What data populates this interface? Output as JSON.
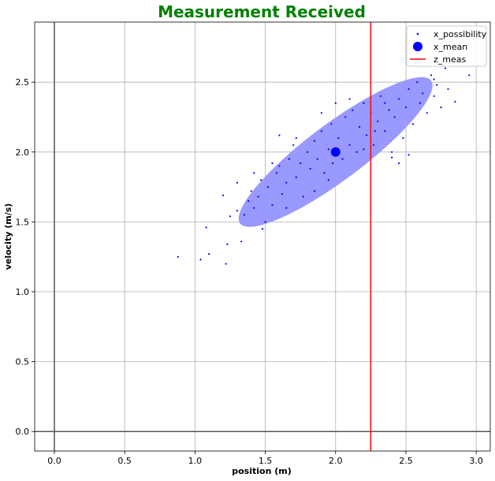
{
  "chart_data": {
    "type": "scatter",
    "title": "Measurement Received",
    "title_color": "#008000",
    "xlabel": "position (m)",
    "ylabel": "velocity (m/s)",
    "xlim": [
      -0.14,
      3.1
    ],
    "ylim": [
      -0.14,
      2.93
    ],
    "xticks": [
      0.0,
      0.5,
      1.0,
      1.5,
      2.0,
      2.5,
      3.0
    ],
    "xtick_labels": [
      "0.0",
      "0.5",
      "1.0",
      "1.5",
      "2.0",
      "2.5",
      "3.0"
    ],
    "yticks": [
      0.0,
      0.5,
      1.0,
      1.5,
      2.0,
      2.5
    ],
    "ytick_labels": [
      "0.0",
      "0.5",
      "1.0",
      "1.5",
      "2.0",
      "2.5"
    ],
    "grid": true,
    "zero_lines": true,
    "legend_position": "top-right",
    "legend": [
      {
        "label": "x_possibility",
        "marker": "dot-small",
        "color": "#0000ff"
      },
      {
        "label": "x_mean",
        "marker": "dot-large",
        "color": "#0000ff"
      },
      {
        "label": "z_meas",
        "marker": "line",
        "color": "#ff0000"
      }
    ],
    "ellipse": {
      "center": [
        2.0,
        2.0
      ],
      "semi_major": 0.85,
      "semi_minor": 0.2,
      "angle_deg": 37,
      "color": "#9999ff"
    },
    "x_mean": [
      2.0,
      2.0
    ],
    "z_meas": 2.25,
    "series": [
      {
        "name": "x_possibility",
        "points": [
          [
            0.88,
            1.25
          ],
          [
            1.04,
            1.23
          ],
          [
            1.08,
            1.46
          ],
          [
            1.1,
            1.27
          ],
          [
            1.22,
            1.2
          ],
          [
            1.23,
            1.34
          ],
          [
            1.33,
            1.36
          ],
          [
            1.2,
            1.69
          ],
          [
            1.25,
            1.54
          ],
          [
            1.3,
            1.58
          ],
          [
            1.35,
            1.55
          ],
          [
            1.38,
            1.65
          ],
          [
            1.4,
            1.72
          ],
          [
            1.42,
            1.6
          ],
          [
            1.45,
            1.68
          ],
          [
            1.47,
            1.8
          ],
          [
            1.5,
            1.5
          ],
          [
            1.52,
            1.75
          ],
          [
            1.55,
            1.62
          ],
          [
            1.58,
            1.85
          ],
          [
            1.6,
            1.9
          ],
          [
            1.6,
            2.12
          ],
          [
            1.62,
            1.7
          ],
          [
            1.65,
            1.78
          ],
          [
            1.67,
            1.95
          ],
          [
            1.7,
            2.05
          ],
          [
            1.72,
            1.82
          ],
          [
            1.75,
            1.92
          ],
          [
            1.77,
            1.68
          ],
          [
            1.8,
            2.0
          ],
          [
            1.82,
            1.88
          ],
          [
            1.85,
            2.08
          ],
          [
            1.87,
            1.95
          ],
          [
            1.9,
            2.15
          ],
          [
            1.92,
            1.85
          ],
          [
            1.95,
            2.02
          ],
          [
            1.97,
            2.2
          ],
          [
            1.98,
            1.92
          ],
          [
            2.02,
            2.1
          ],
          [
            2.05,
            1.95
          ],
          [
            2.07,
            2.25
          ],
          [
            2.1,
            2.05
          ],
          [
            2.12,
            2.3
          ],
          [
            2.15,
            2.0
          ],
          [
            2.17,
            2.18
          ],
          [
            2.2,
            2.35
          ],
          [
            2.22,
            2.12
          ],
          [
            2.25,
            2.28
          ],
          [
            2.27,
            2.05
          ],
          [
            2.3,
            2.22
          ],
          [
            2.32,
            2.4
          ],
          [
            2.35,
            2.15
          ],
          [
            2.38,
            2.3
          ],
          [
            2.4,
            2.0
          ],
          [
            2.42,
            2.25
          ],
          [
            2.45,
            2.38
          ],
          [
            2.48,
            2.1
          ],
          [
            2.5,
            2.32
          ],
          [
            2.52,
            2.45
          ],
          [
            2.55,
            2.2
          ],
          [
            2.58,
            2.5
          ],
          [
            2.6,
            2.35
          ],
          [
            2.62,
            2.42
          ],
          [
            2.65,
            2.28
          ],
          [
            2.68,
            2.55
          ],
          [
            2.7,
            2.4
          ],
          [
            2.72,
            2.48
          ],
          [
            2.75,
            2.32
          ],
          [
            2.78,
            2.6
          ],
          [
            2.8,
            2.45
          ],
          [
            2.7,
            2.52
          ],
          [
            2.85,
            2.36
          ],
          [
            2.95,
            2.55
          ],
          [
            2.45,
            1.92
          ],
          [
            2.52,
            1.98
          ],
          [
            2.4,
            1.96
          ],
          [
            1.48,
            1.45
          ],
          [
            1.3,
            1.78
          ],
          [
            1.42,
            1.85
          ],
          [
            1.55,
            1.92
          ],
          [
            1.9,
            2.28
          ],
          [
            2.0,
            2.35
          ],
          [
            2.1,
            2.38
          ],
          [
            1.85,
            1.72
          ],
          [
            1.95,
            1.8
          ],
          [
            2.28,
            2.15
          ],
          [
            2.35,
            2.35
          ],
          [
            2.2,
            2.02
          ],
          [
            1.72,
            2.1
          ],
          [
            1.65,
            1.6
          ]
        ]
      }
    ]
  }
}
